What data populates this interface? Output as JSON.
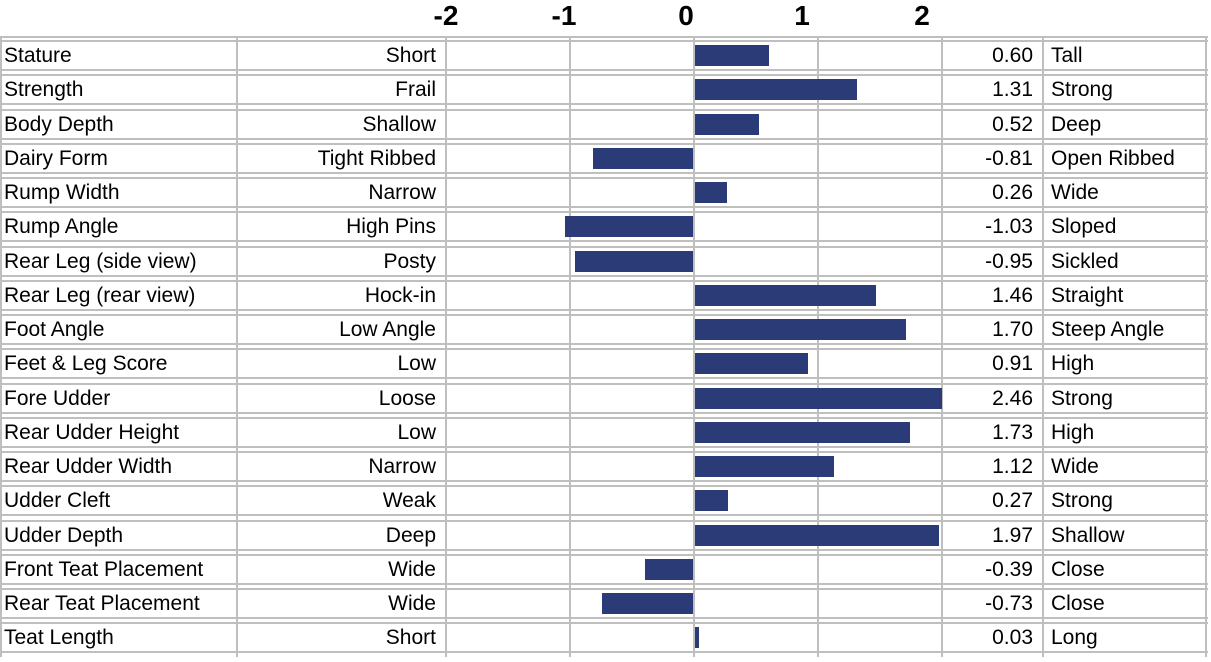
{
  "chart_data": {
    "type": "bar",
    "orientation": "horizontal",
    "title": "",
    "axis": {
      "ticks": [
        -2,
        -1,
        0,
        1,
        2
      ],
      "xlim": [
        -2,
        2
      ],
      "gridlines": true,
      "zero_line": 0
    },
    "bar_color": "#2b3b78",
    "grid_color": "#bfbfbf",
    "columns": {
      "trait": "trait name",
      "low": "low-end descriptor",
      "value": "STA value",
      "high": "high-end descriptor"
    },
    "rows": [
      {
        "trait": "Stature",
        "low": "Short",
        "value": 0.6,
        "high": "Tall"
      },
      {
        "trait": "Strength",
        "low": "Frail",
        "value": 1.31,
        "high": "Strong"
      },
      {
        "trait": "Body Depth",
        "low": "Shallow",
        "value": 0.52,
        "high": "Deep"
      },
      {
        "trait": "Dairy Form",
        "low": "Tight Ribbed",
        "value": -0.81,
        "high": "Open Ribbed"
      },
      {
        "trait": "Rump Width",
        "low": "Narrow",
        "value": 0.26,
        "high": "Wide"
      },
      {
        "trait": "Rump Angle",
        "low": "High Pins",
        "value": -1.03,
        "high": "Sloped"
      },
      {
        "trait": "Rear Leg (side view)",
        "low": "Posty",
        "value": -0.95,
        "high": "Sickled"
      },
      {
        "trait": "Rear Leg (rear view)",
        "low": "Hock-in",
        "value": 1.46,
        "high": "Straight"
      },
      {
        "trait": "Foot Angle",
        "low": "Low Angle",
        "value": 1.7,
        "high": "Steep Angle"
      },
      {
        "trait": "Feet & Leg Score",
        "low": "Low",
        "value": 0.91,
        "high": "High"
      },
      {
        "trait": "Fore Udder",
        "low": "Loose",
        "value": 2.46,
        "high": "Strong"
      },
      {
        "trait": "Rear Udder Height",
        "low": "Low",
        "value": 1.73,
        "high": "High"
      },
      {
        "trait": "Rear Udder Width",
        "low": "Narrow",
        "value": 1.12,
        "high": "Wide"
      },
      {
        "trait": "Udder Cleft",
        "low": "Weak",
        "value": 0.27,
        "high": "Strong"
      },
      {
        "trait": "Udder Depth",
        "low": "Deep",
        "value": 1.97,
        "high": "Shallow"
      },
      {
        "trait": "Front Teat Placement",
        "low": "Wide",
        "value": -0.39,
        "high": "Close"
      },
      {
        "trait": "Rear Teat Placement",
        "low": "Wide",
        "value": -0.73,
        "high": "Close"
      },
      {
        "trait": "Teat Length",
        "low": "Short",
        "value": 0.03,
        "high": "Long"
      }
    ]
  }
}
